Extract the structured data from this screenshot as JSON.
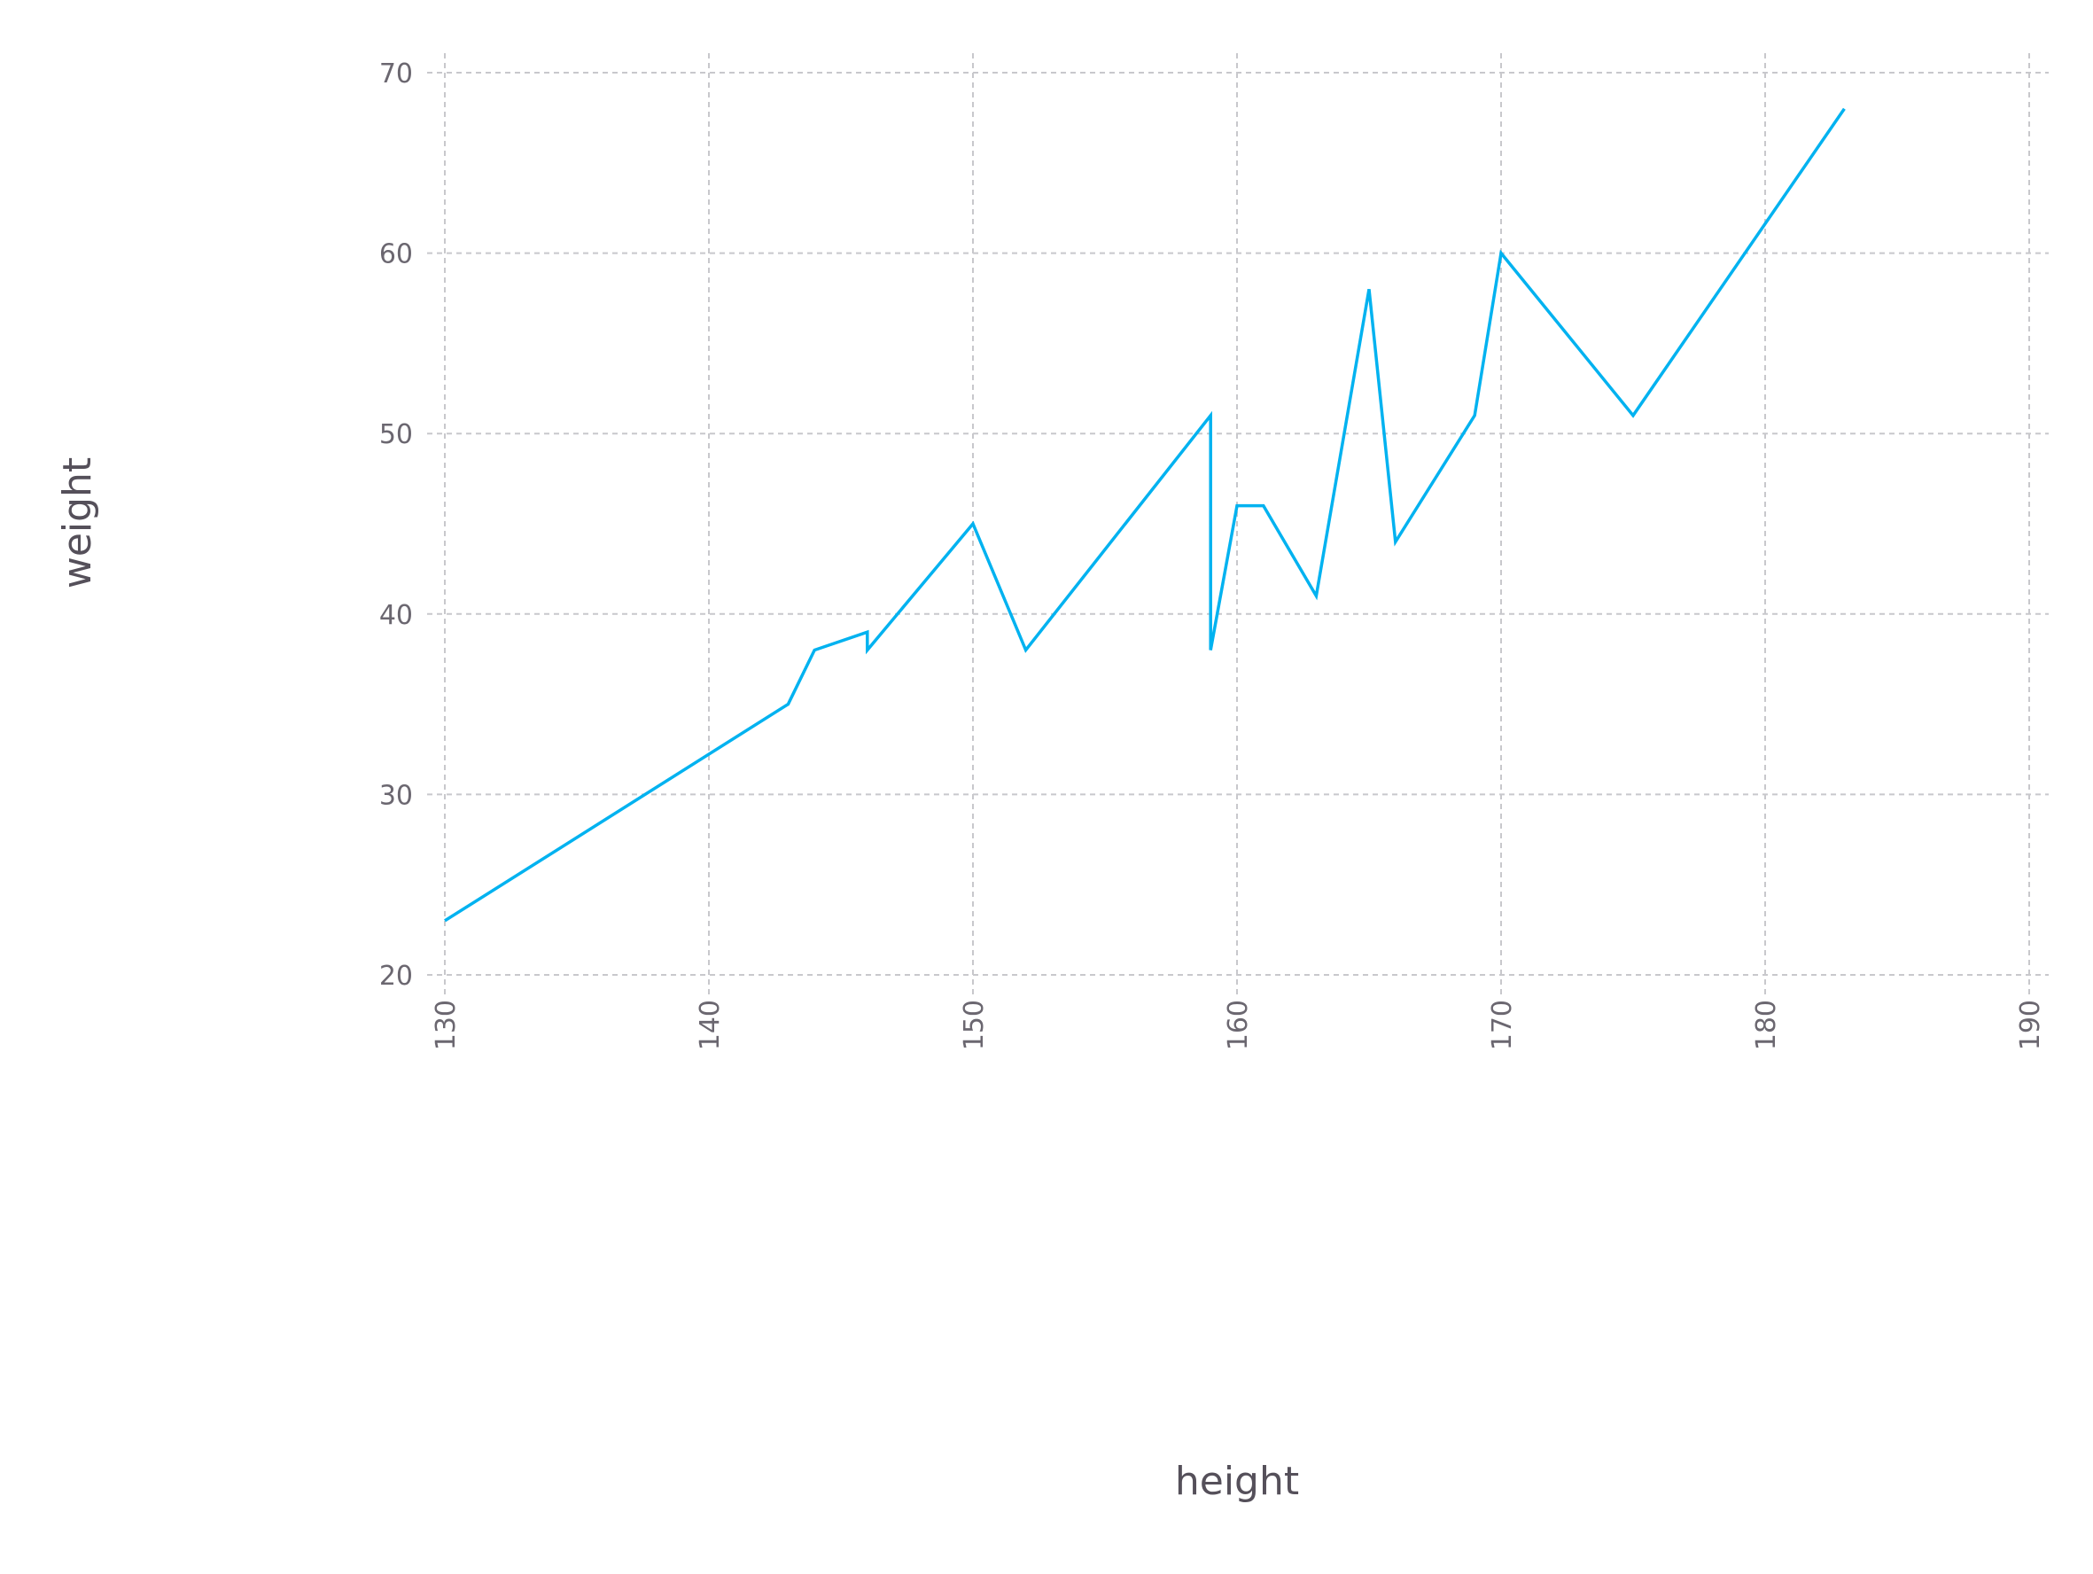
{
  "chart_data": {
    "type": "line",
    "xlabel": "height",
    "ylabel": "weight",
    "xlim": [
      130,
      190
    ],
    "ylim": [
      20,
      70
    ],
    "x_ticks": [
      130,
      140,
      150,
      160,
      170,
      180,
      190
    ],
    "y_ticks": [
      20,
      30,
      40,
      50,
      60,
      70
    ],
    "grid": true,
    "series": [
      {
        "color": "#00b2f0",
        "x": [
          130,
          143,
          144,
          146,
          146,
          150,
          152,
          159,
          159,
          160,
          161,
          163,
          165,
          166,
          169,
          170,
          175,
          183
        ],
        "y": [
          23,
          35,
          38,
          39,
          38,
          45,
          38,
          51,
          38,
          46,
          46,
          41,
          58,
          44,
          51,
          60,
          51,
          68
        ]
      }
    ]
  }
}
